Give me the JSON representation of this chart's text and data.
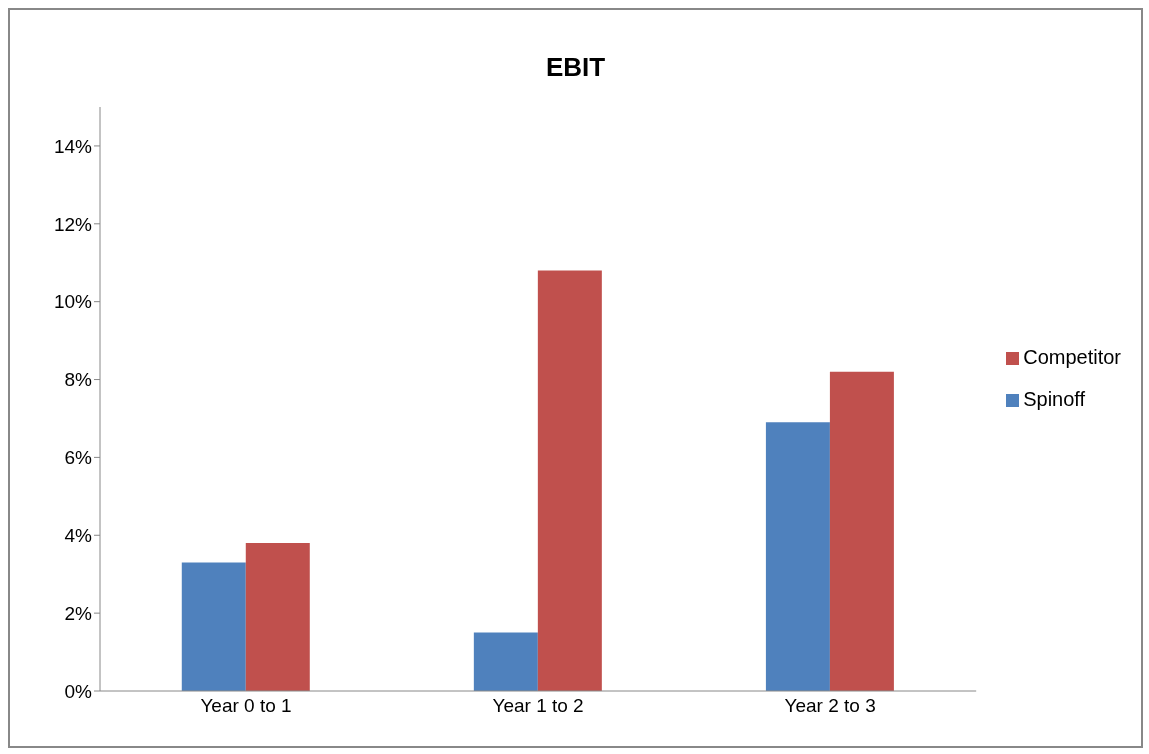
{
  "chart_data": {
    "type": "bar",
    "title": "EBIT",
    "categories": [
      "Year 0 to 1",
      "Year 1 to 2",
      "Year 2 to 3"
    ],
    "series": [
      {
        "name": "Spinoff",
        "color": "#4f81bd",
        "values": [
          3.3,
          1.5,
          6.9
        ]
      },
      {
        "name": "Competitor",
        "color": "#c0504d",
        "values": [
          3.8,
          10.8,
          8.2
        ]
      }
    ],
    "ylim": [
      0,
      15
    ],
    "yticks": [
      {
        "value": 0,
        "label": "0%"
      },
      {
        "value": 2,
        "label": "2%"
      },
      {
        "value": 4,
        "label": "4%"
      },
      {
        "value": 6,
        "label": "6%"
      },
      {
        "value": 8,
        "label": "8%"
      },
      {
        "value": 10,
        "label": "10%"
      },
      {
        "value": 12,
        "label": "12%"
      },
      {
        "value": 14,
        "label": "14%"
      }
    ],
    "legend": "right"
  }
}
